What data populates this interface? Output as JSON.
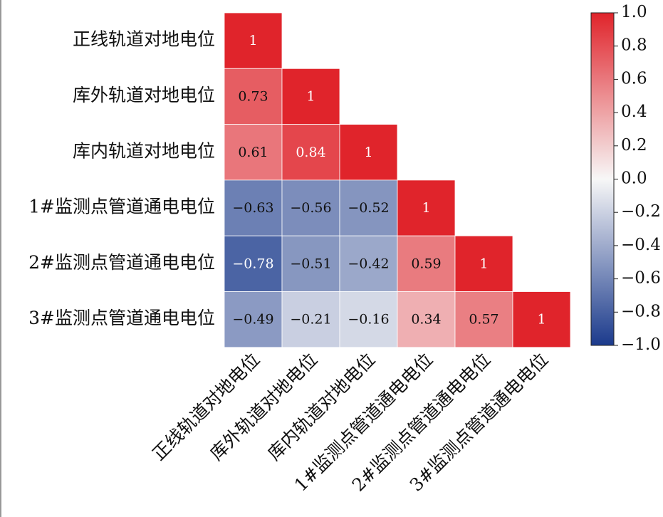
{
  "chart_data": {
    "type": "heatmap",
    "labels": [
      "正线轨道对地电位",
      "库外轨道对地电位",
      "库内轨道对地电位",
      "1#监测点管道通电电位",
      "2#监测点管道通电电位",
      "3#监测点管道通电电位"
    ],
    "values": [
      [
        1,
        null,
        null,
        null,
        null,
        null
      ],
      [
        0.73,
        1,
        null,
        null,
        null,
        null
      ],
      [
        0.61,
        0.84,
        1,
        null,
        null,
        null
      ],
      [
        -0.63,
        -0.56,
        -0.52,
        1,
        null,
        null
      ],
      [
        -0.78,
        -0.51,
        -0.42,
        0.59,
        1,
        null
      ],
      [
        -0.49,
        -0.21,
        -0.16,
        0.34,
        0.57,
        1
      ]
    ],
    "value_labels": [
      [
        "1",
        null,
        null,
        null,
        null,
        null
      ],
      [
        "0.73",
        "1",
        null,
        null,
        null,
        null
      ],
      [
        "0.61",
        "0.84",
        "1",
        null,
        null,
        null
      ],
      [
        "−0.63",
        "−0.56",
        "−0.52",
        "1",
        null,
        null
      ],
      [
        "−0.78",
        "−0.51",
        "−0.42",
        "0.59",
        "1",
        null
      ],
      [
        "−0.49",
        "−0.21",
        "−0.16",
        "0.34",
        "0.57",
        "1"
      ]
    ],
    "colormap": [
      "#1b3a8c",
      "#f7f7f7",
      "#e0242b"
    ],
    "zlim": [
      -1,
      1
    ],
    "zticks": [
      {
        "value": 1,
        "label": "1.0"
      },
      0.8,
      0.6,
      0.4,
      0.2,
      {
        "value": 0,
        "label": "0.0"
      },
      {
        "value": -0.2,
        "label": "−0.2"
      },
      {
        "value": -0.4,
        "label": "−0.4"
      },
      {
        "value": -0.6,
        "label": "−0.6"
      },
      {
        "value": -0.8,
        "label": "−0.8"
      },
      {
        "value": -1,
        "label": "−1.0"
      }
    ]
  }
}
